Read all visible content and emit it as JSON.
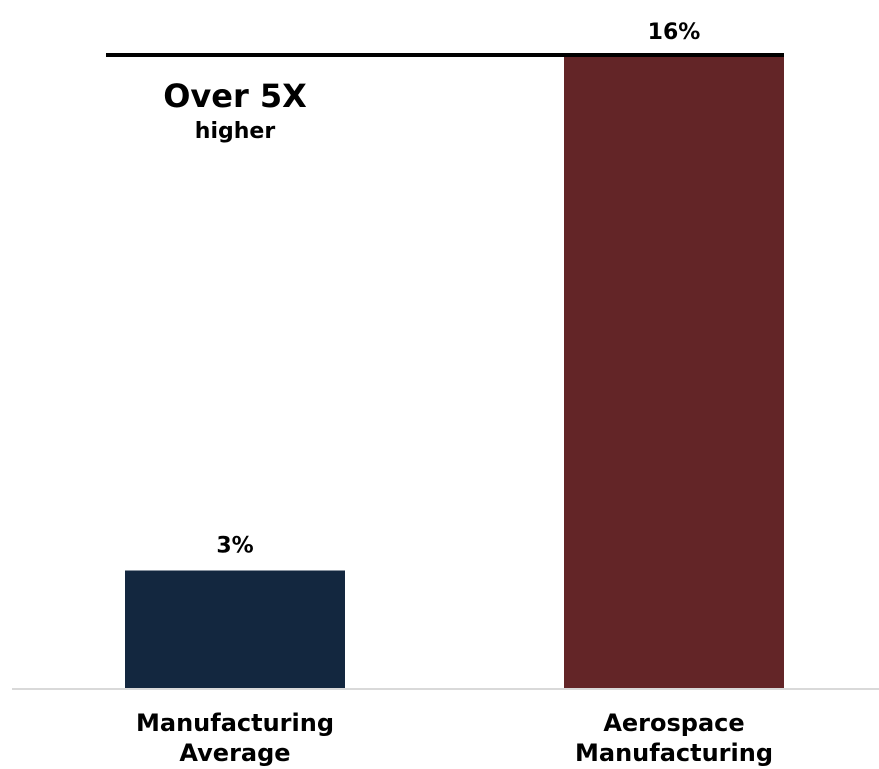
{
  "chart_data": {
    "type": "bar",
    "categories": [
      [
        "Manufacturing",
        "Average"
      ],
      [
        "Aerospace",
        "Manufacturing"
      ]
    ],
    "values": [
      3,
      16
    ],
    "data_labels": [
      "3%",
      "16%"
    ],
    "unit": "%",
    "ylim": [
      0,
      16
    ],
    "grid": false,
    "legend": "none",
    "annotation": {
      "main": "Over 5X",
      "sub": "higher"
    },
    "colors": {
      "bars": [
        "#13273f",
        "#632527"
      ],
      "reference_line": "#000000",
      "baseline": "#d9d9d9",
      "text": "#000000"
    }
  }
}
